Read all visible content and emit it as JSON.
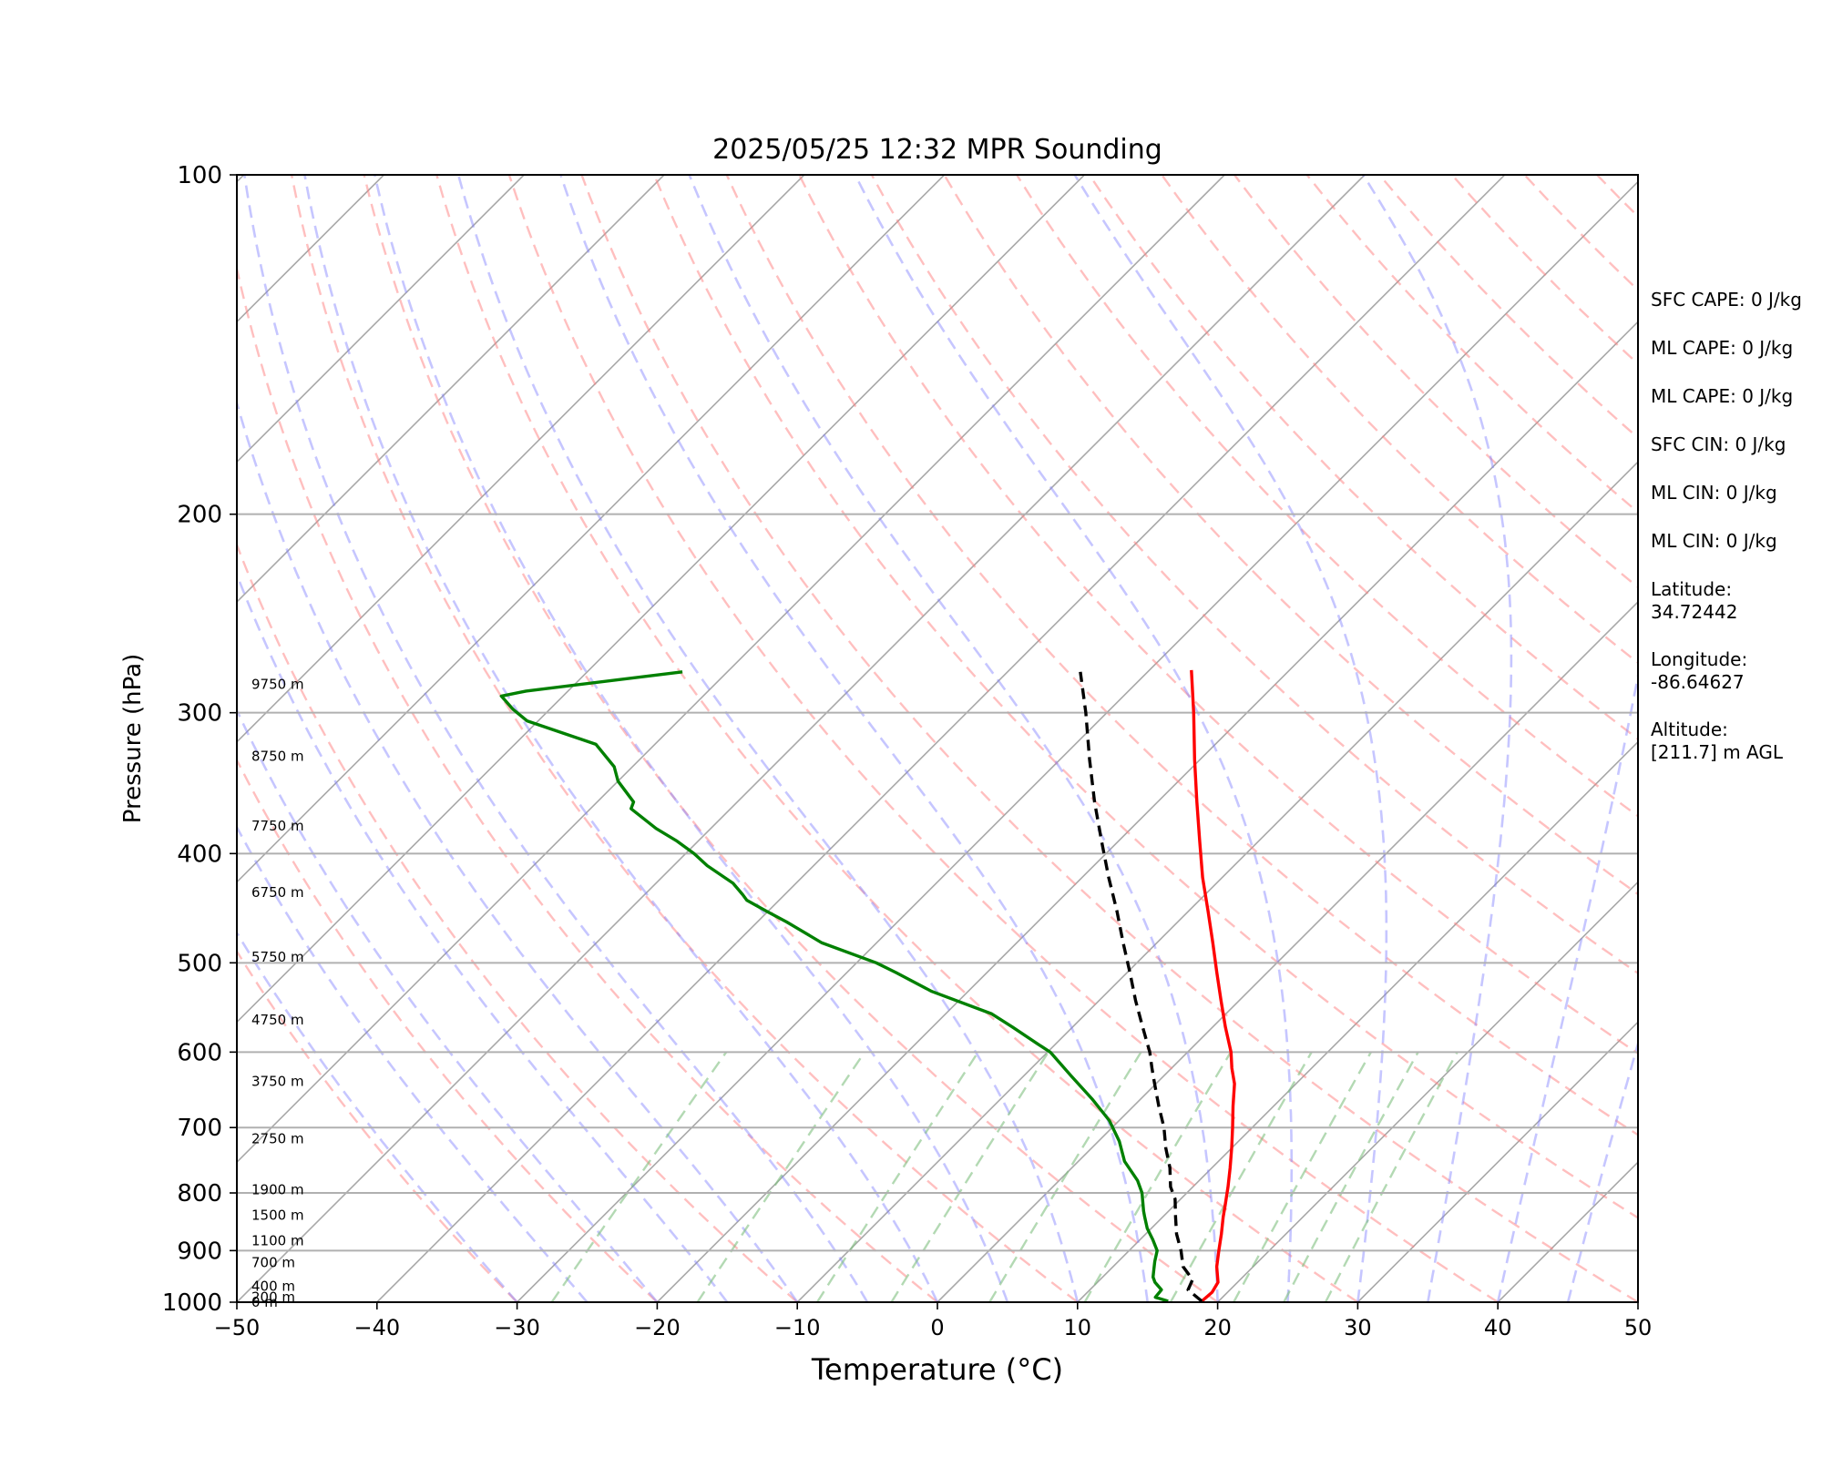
{
  "chart_data": {
    "type": "skew-t",
    "title": "2025/05/25 12:32 MPR Sounding",
    "xlabel": "Temperature (°C)",
    "ylabel": "Pressure (hPa)",
    "xlim": [
      -50,
      50
    ],
    "ylim": [
      1000,
      100
    ],
    "y_scale": "log",
    "grid": true,
    "x_ticks": [
      "−50",
      "−40",
      "−30",
      "−20",
      "−10",
      "0",
      "10",
      "20",
      "30",
      "40",
      "50"
    ],
    "y_ticks": [
      {
        "p": 100,
        "label": "100"
      },
      {
        "p": 200,
        "label": "200"
      },
      {
        "p": 300,
        "label": "300"
      },
      {
        "p": 400,
        "label": "400"
      },
      {
        "p": 500,
        "label": "500"
      },
      {
        "p": 600,
        "label": "600"
      },
      {
        "p": 700,
        "label": "700"
      },
      {
        "p": 800,
        "label": "800"
      },
      {
        "p": 900,
        "label": "900"
      },
      {
        "p": 1000,
        "label": "1000"
      }
    ],
    "height_labels": [
      {
        "p": 1000,
        "label": "0 m"
      },
      {
        "p": 990,
        "label": "200 m"
      },
      {
        "p": 968,
        "label": "400 m"
      },
      {
        "p": 922,
        "label": "700 m"
      },
      {
        "p": 882,
        "label": "1100 m"
      },
      {
        "p": 837,
        "label": "1500 m"
      },
      {
        "p": 795,
        "label": "1900 m"
      },
      {
        "p": 716,
        "label": "2750 m"
      },
      {
        "p": 637,
        "label": "3750 m"
      },
      {
        "p": 562,
        "label": "4750 m"
      },
      {
        "p": 494,
        "label": "5750 m"
      },
      {
        "p": 433,
        "label": "6750 m"
      },
      {
        "p": 378,
        "label": "7750 m"
      },
      {
        "p": 328,
        "label": "8750 m"
      },
      {
        "p": 283,
        "label": "9750 m"
      }
    ],
    "series": [
      {
        "role": "temperature",
        "color": "#ff0000",
        "style": "solid",
        "points": [
          [
            18.8,
            998
          ],
          [
            18.9,
            980
          ],
          [
            18.6,
            960
          ],
          [
            17.4,
            930
          ],
          [
            16.4,
            900
          ],
          [
            15.4,
            870
          ],
          [
            14.3,
            840
          ],
          [
            13.6,
            820
          ],
          [
            12.5,
            790
          ],
          [
            11.3,
            760
          ],
          [
            10.0,
            730
          ],
          [
            8.6,
            700
          ],
          [
            7.1,
            670
          ],
          [
            5.6,
            640
          ],
          [
            4.3,
            620
          ],
          [
            3.1,
            600
          ],
          [
            0.9,
            570
          ],
          [
            -1.3,
            540
          ],
          [
            -3.6,
            510
          ],
          [
            -6.0,
            480
          ],
          [
            -8.6,
            450
          ],
          [
            -11.4,
            420
          ],
          [
            -14.2,
            390
          ],
          [
            -17.2,
            360
          ],
          [
            -20.4,
            330
          ],
          [
            -23.8,
            300
          ],
          [
            -27.0,
            275
          ]
        ]
      },
      {
        "role": "parcel",
        "color": "#000000",
        "style": "dashed",
        "points": [
          [
            18.8,
            998
          ],
          [
            17.0,
            975
          ],
          [
            16.6,
            955
          ],
          [
            15.0,
            930
          ],
          [
            13.7,
            900
          ],
          [
            12.2,
            870
          ],
          [
            10.9,
            840
          ],
          [
            9.6,
            810
          ],
          [
            8.4,
            790
          ],
          [
            7.0,
            760
          ],
          [
            5.3,
            730
          ],
          [
            3.7,
            700
          ],
          [
            1.8,
            670
          ],
          [
            -0.1,
            640
          ],
          [
            -1.4,
            620
          ],
          [
            -2.7,
            600
          ],
          [
            -5.0,
            570
          ],
          [
            -7.4,
            540
          ],
          [
            -9.8,
            510
          ],
          [
            -12.4,
            480
          ],
          [
            -15.1,
            450
          ],
          [
            -18.1,
            420
          ],
          [
            -21.2,
            390
          ],
          [
            -24.5,
            360
          ],
          [
            -27.9,
            330
          ],
          [
            -31.5,
            300
          ],
          [
            -34.8,
            276
          ]
        ]
      },
      {
        "role": "dewpoint",
        "color": "#008000",
        "style": "solid",
        "points": [
          [
            16.4,
            998
          ],
          [
            15.2,
            990
          ],
          [
            15.1,
            975
          ],
          [
            14.1,
            960
          ],
          [
            13.6,
            950
          ],
          [
            13.1,
            935
          ],
          [
            12.6,
            920
          ],
          [
            12.0,
            900
          ],
          [
            10.9,
            880
          ],
          [
            9.7,
            860
          ],
          [
            8.7,
            840
          ],
          [
            8.2,
            830
          ],
          [
            6.8,
            800
          ],
          [
            5.6,
            780
          ],
          [
            3.3,
            750
          ],
          [
            1.5,
            720
          ],
          [
            -0.7,
            690
          ],
          [
            -3.5,
            660
          ],
          [
            -6.6,
            630
          ],
          [
            -9.8,
            600
          ],
          [
            -11.3,
            590
          ],
          [
            -14.3,
            570
          ],
          [
            -16.7,
            555
          ],
          [
            -22.6,
            530
          ],
          [
            -26.5,
            510
          ],
          [
            -28.6,
            500
          ],
          [
            -33.9,
            480
          ],
          [
            -37.9,
            460
          ],
          [
            -40.1,
            450
          ],
          [
            -42.3,
            440
          ],
          [
            -43.0,
            435
          ],
          [
            -44.5,
            425
          ],
          [
            -47.6,
            410
          ],
          [
            -49.4,
            400
          ],
          [
            -51.5,
            390
          ],
          [
            -53.9,
            380
          ],
          [
            -57.1,
            365
          ],
          [
            -57.4,
            360
          ],
          [
            -60.0,
            345
          ],
          [
            -61.3,
            335
          ],
          [
            -64.2,
            320
          ],
          [
            -70.8,
            305
          ],
          [
            -72.6,
            298
          ],
          [
            -74.4,
            290
          ],
          [
            -73.0,
            287
          ],
          [
            -63.2,
            276
          ]
        ]
      }
    ],
    "temperature_color": "#ff0000",
    "dewpoint_color": "#008000",
    "parcel_color": "#000000"
  },
  "side_info": {
    "sfc_cape": "SFC CAPE: 0 J/kg",
    "ml_cape_1": "ML CAPE: 0 J/kg",
    "ml_cape_2": "ML CAPE: 0 J/kg",
    "sfc_cin": "SFC CIN: 0 J/kg",
    "ml_cin_1": "ML CIN: 0 J/kg",
    "ml_cin_2": "ML CIN: 0 J/kg",
    "latitude_label": "Latitude:",
    "latitude_value": "34.72442",
    "longitude_label": "Longitude:",
    "longitude_value": "-86.64627",
    "altitude_label": "Altitude:",
    "altitude_value": "[211.7] m AGL"
  }
}
